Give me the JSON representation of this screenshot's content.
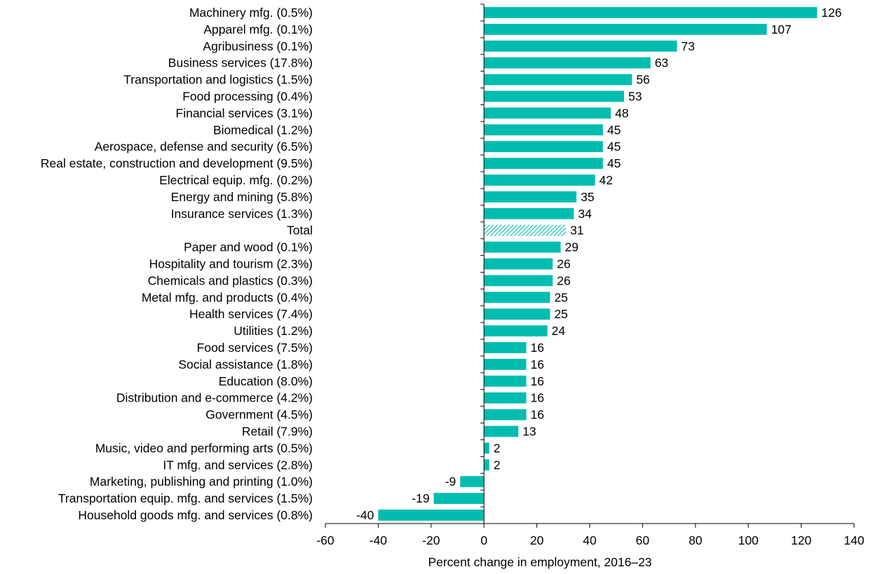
{
  "chart_data": {
    "type": "bar",
    "orientation": "horizontal",
    "title": "",
    "xlabel": "Percent change in employment, 2016–23",
    "ylabel": "",
    "xlim": [
      -60,
      140
    ],
    "xticks": [
      -60,
      -40,
      -20,
      0,
      20,
      40,
      60,
      80,
      100,
      120,
      140
    ],
    "bar_color": "#00BDB0",
    "highlight_category": "Total",
    "categories": [
      "Machinery mfg. (0.5%)",
      "Apparel mfg. (0.1%)",
      "Agribusiness (0.1%)",
      "Business services (17.8%)",
      "Transportation and logistics (1.5%)",
      "Food processing (0.4%)",
      "Financial services (3.1%)",
      "Biomedical (1.2%)",
      "Aerospace, defense and security (6.5%)",
      "Real estate, construction and development (9.5%)",
      "Electrical equip. mfg. (0.2%)",
      "Energy and mining (5.8%)",
      "Insurance services (1.3%)",
      "Total",
      "Paper and wood (0.1%)",
      "Hospitality and tourism (2.3%)",
      "Chemicals and plastics (0.3%)",
      "Metal mfg. and products (0.4%)",
      "Health services (7.4%)",
      "Utilities (1.2%)",
      "Food services (7.5%)",
      "Social assistance (1.8%)",
      "Education (8.0%)",
      "Distribution and e-commerce (4.2%)",
      "Government (4.5%)",
      "Retail (7.9%)",
      "Music, video and performing arts (0.5%)",
      "IT mfg. and services (2.8%)",
      "Marketing, publishing and printing (1.0%)",
      "Transportation equip. mfg. and services (1.5%)",
      "Household goods mfg. and services (0.8%)"
    ],
    "values": [
      126,
      107,
      73,
      63,
      56,
      53,
      48,
      45,
      45,
      45,
      42,
      35,
      34,
      31,
      29,
      26,
      26,
      25,
      25,
      24,
      16,
      16,
      16,
      16,
      16,
      13,
      2,
      2,
      -9,
      -19,
      -40
    ],
    "value_labels": [
      "126",
      "107",
      "73",
      "63",
      "56",
      "53",
      "48",
      "45",
      "45",
      "45",
      "42",
      "35",
      "34",
      "31",
      "29",
      "26",
      "26",
      "25",
      "25",
      "24",
      "16",
      "16",
      "16",
      "16",
      "16",
      "13",
      "2",
      "2",
      "-9",
      "-19",
      "-40"
    ],
    "grid": false,
    "legend": null
  }
}
